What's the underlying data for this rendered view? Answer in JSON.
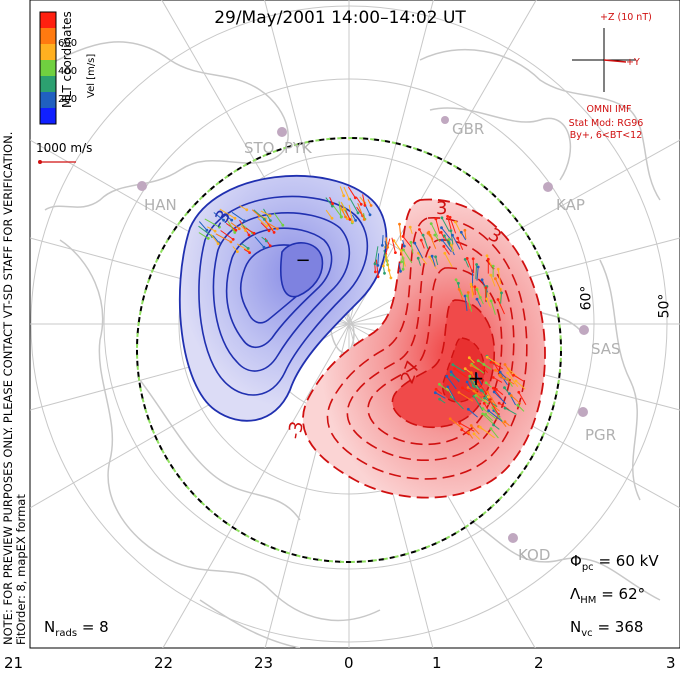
{
  "title": "29/May/2001  14:00–14:02  UT",
  "side_note": {
    "line1": "NOTE: FOR PREVIEW PURPOSES ONLY. PLEASE CONTACT VT-SD STAFF FOR VERIFICATION.",
    "line2": "FitOrder: 8, mapEX format"
  },
  "coords_label": "MLT coordinates",
  "velocity_scale": {
    "unit": "Vel [m/s]",
    "ticks": [
      "600",
      "400",
      "200"
    ],
    "colors": [
      "#ff2010",
      "#ff7a10",
      "#ffb020",
      "#70d040",
      "#2ca070",
      "#2060c0",
      "#1020ff"
    ]
  },
  "ref_vector": {
    "label": "1000 m/s"
  },
  "imf": {
    "axis_z": "+Z (10 nT)",
    "axis_y": "+Y",
    "source": "OMNI IMF",
    "model": "Stat Mod: RG96",
    "condition": "By+, 6<BT<12"
  },
  "stations": [
    "STO",
    "PYK",
    "GBR",
    "HAN",
    "KAP",
    "SAS",
    "PGR",
    "KOD"
  ],
  "latitude_labels": [
    "60°",
    "50°"
  ],
  "mlt_labels": [
    "21",
    "22",
    "23",
    "0",
    "1",
    "2",
    "3"
  ],
  "contour_labels": {
    "neg_small": "-3",
    "pos": "3",
    "pos2": "3",
    "pos_inner": "27",
    "neg_side": "-3"
  },
  "extrema": {
    "min": "−",
    "max": "+"
  },
  "stats": {
    "nrads_sym": "N",
    "nrads_sub": "rads",
    "nrads_val": "= 8",
    "phi_sym": "Φ",
    "phi_sub": "pc",
    "phi_val": "= 60 kV",
    "lam_sym": "Λ",
    "lam_sub": "HM",
    "lam_val": "= 62°",
    "nvc_sym": "N",
    "nvc_sub": "vc",
    "nvc_val": "= 368"
  }
}
